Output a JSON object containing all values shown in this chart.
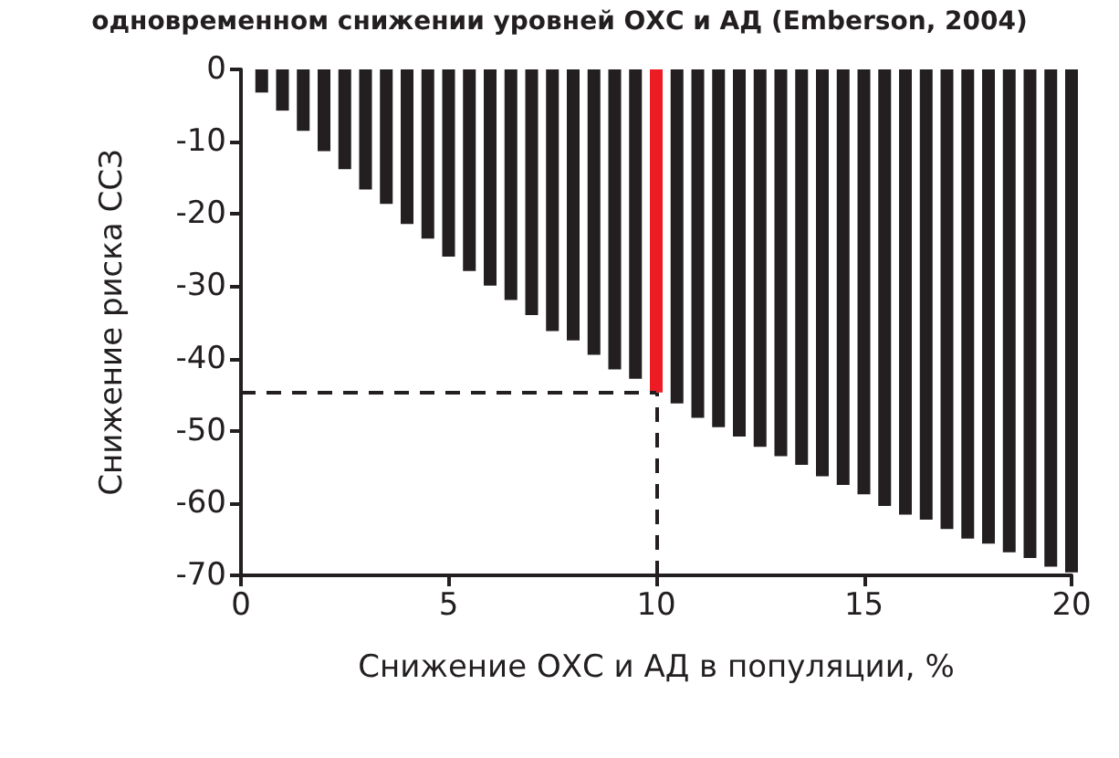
{
  "chart_data": {
    "type": "bar",
    "title": "одновременном снижении уровней ОХС и АД (Emberson, 2004)",
    "xlabel": "Снижение ОХС и АД в популяции, %",
    "ylabel": "Снижение риска ССЗ",
    "x": [
      0.5,
      1,
      1.5,
      2,
      2.5,
      3,
      3.5,
      4,
      4.5,
      5,
      5.5,
      6,
      6.5,
      7,
      7.5,
      8,
      8.5,
      9,
      9.5,
      10,
      10.5,
      11,
      11.5,
      12,
      12.5,
      13,
      13.5,
      14,
      14.5,
      15,
      15.5,
      16,
      16.5,
      17,
      17.5,
      18,
      18.5,
      19,
      19.5,
      20
    ],
    "values": [
      -3.2,
      -5.7,
      -8.5,
      -11.3,
      -13.8,
      -16.6,
      -18.6,
      -21.4,
      -23.4,
      -25.9,
      -27.9,
      -29.9,
      -31.9,
      -34,
      -36.2,
      -37.5,
      -39.5,
      -41.5,
      -42.8,
      -44.7,
      -46.2,
      -48.2,
      -49.5,
      -50.8,
      -52.2,
      -53.5,
      -54.7,
      -56.3,
      -57.5,
      -58.8,
      -60.4,
      -61.6,
      -62.3,
      -63.6,
      -64.9,
      -65.6,
      -66.8,
      -67.6,
      -68.8,
      -69.6
    ],
    "colors": [
      "#231f20",
      "#231f20",
      "#231f20",
      "#231f20",
      "#231f20",
      "#231f20",
      "#231f20",
      "#231f20",
      "#231f20",
      "#231f20",
      "#231f20",
      "#231f20",
      "#231f20",
      "#231f20",
      "#231f20",
      "#231f20",
      "#231f20",
      "#231f20",
      "#231f20",
      "#ed1c24",
      "#231f20",
      "#231f20",
      "#231f20",
      "#231f20",
      "#231f20",
      "#231f20",
      "#231f20",
      "#231f20",
      "#231f20",
      "#231f20",
      "#231f20",
      "#231f20",
      "#231f20",
      "#231f20",
      "#231f20",
      "#231f20",
      "#231f20",
      "#231f20",
      "#231f20",
      "#231f20"
    ],
    "xlim": [
      0,
      20
    ],
    "xticks": [
      0,
      5,
      10,
      15,
      20
    ],
    "ylim": [
      -70,
      0
    ],
    "yticks": [
      0,
      -10,
      -20,
      -30,
      -40,
      -50,
      -60,
      -70
    ],
    "ref_lines": [
      {
        "axis": "y",
        "value": -44.7,
        "line_style": "dashed",
        "color": "#231f20"
      },
      {
        "axis": "x",
        "value": 10,
        "line_style": "dashed",
        "color": "#231f20"
      }
    ],
    "grid": false
  }
}
